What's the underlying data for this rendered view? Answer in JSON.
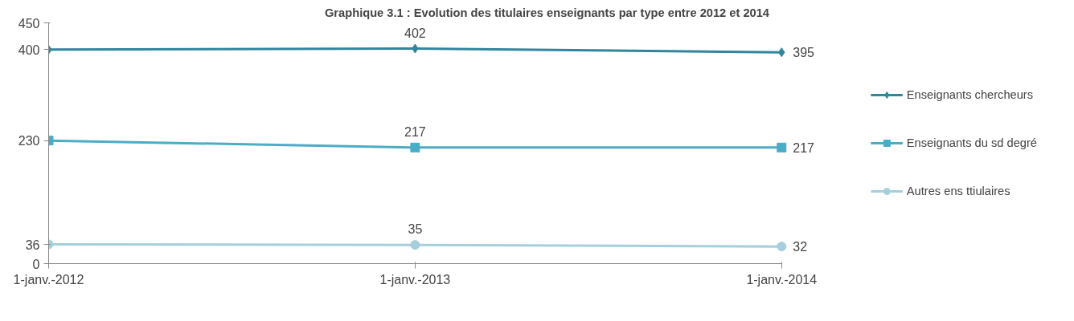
{
  "chart_data": {
    "type": "line",
    "title": "Graphique 3.1 : Evolution des titulaires enseignants par type entre 2012 et 2014",
    "categories": [
      "1-janv.-2012",
      "1-janv.-2013",
      "1-janv.-2014"
    ],
    "series": [
      {
        "name": "Enseignants chercheurs",
        "color": "#31859c",
        "marker": "diamond",
        "values": [
          400,
          402,
          395
        ],
        "value_labels": [
          null,
          "402",
          "395"
        ]
      },
      {
        "name": "Enseignants du sd degré",
        "color": "#4bacc6",
        "marker": "square",
        "values": [
          230,
          217,
          217
        ],
        "value_labels": [
          null,
          "217",
          "217"
        ]
      },
      {
        "name": "Autres ens ttiulaires",
        "color": "#a5cfdc",
        "marker": "circle",
        "values": [
          36,
          35,
          32
        ],
        "value_labels": [
          null,
          "35",
          "32"
        ]
      }
    ],
    "ylim": [
      0,
      450
    ],
    "yticks": [
      0,
      36,
      230,
      400,
      450
    ],
    "grid": false,
    "legend": "right",
    "line_style": "solid"
  }
}
